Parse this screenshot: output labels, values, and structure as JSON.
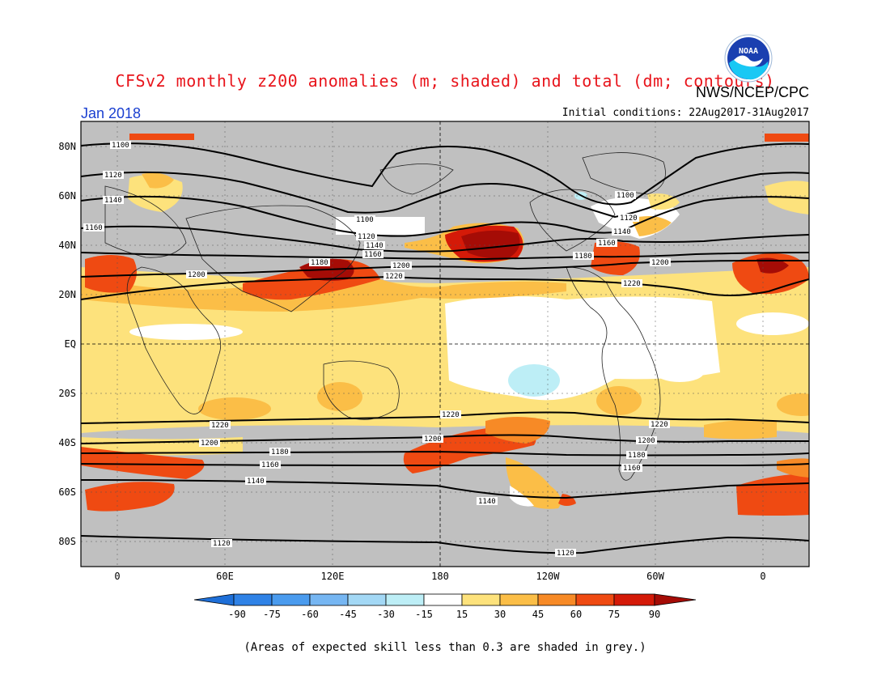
{
  "header": {
    "title": "CFSv2 monthly z200 anomalies (m; shaded) and total (dm; contours)",
    "org": "NWS/NCEP/CPC",
    "logo_text": "NOAA",
    "month": "Jan 2018",
    "initial_conditions": "Initial conditions: 22Aug2017-31Aug2017"
  },
  "map": {
    "lat_labels": [
      "80N",
      "60N",
      "40N",
      "20N",
      "EQ",
      "20S",
      "40S",
      "60S",
      "80S"
    ],
    "lon_labels": [
      "0",
      "60E",
      "120E",
      "180",
      "120W",
      "60W",
      "0"
    ],
    "contour_labels": [
      "1100",
      "1120",
      "1140",
      "1160",
      "1180",
      "1200",
      "1220"
    ],
    "skill_mask_color": "#c0c0c0",
    "features": [
      {
        "id": "west-pacific-max",
        "level": "75-90",
        "region": "Western Pacific near Japan"
      },
      {
        "id": "north-pacific-max",
        "level": "75-90",
        "region": "North Pacific east of dateline"
      },
      {
        "id": "north-atlantic-max",
        "level": "60-75",
        "region": "Western North Atlantic"
      },
      {
        "id": "east-pacific-min",
        "level": "-30 to -15",
        "region": "Tropical eastern Pacific"
      }
    ]
  },
  "colorbar": {
    "ticks": [
      "-90",
      "-75",
      "-60",
      "-45",
      "-30",
      "-15",
      "15",
      "30",
      "45",
      "60",
      "75",
      "90"
    ],
    "colors": [
      "#1e6fd8",
      "#2f82e6",
      "#4a9bee",
      "#76b6f2",
      "#a3d8f5",
      "#bdeef6",
      "#ffffff",
      "#fde27c",
      "#fbbe47",
      "#f78a26",
      "#ef4a12",
      "#d41a08",
      "#a50c06"
    ]
  },
  "footnote": "(Areas of expected skill less than 0.3 are shaded in grey.)"
}
